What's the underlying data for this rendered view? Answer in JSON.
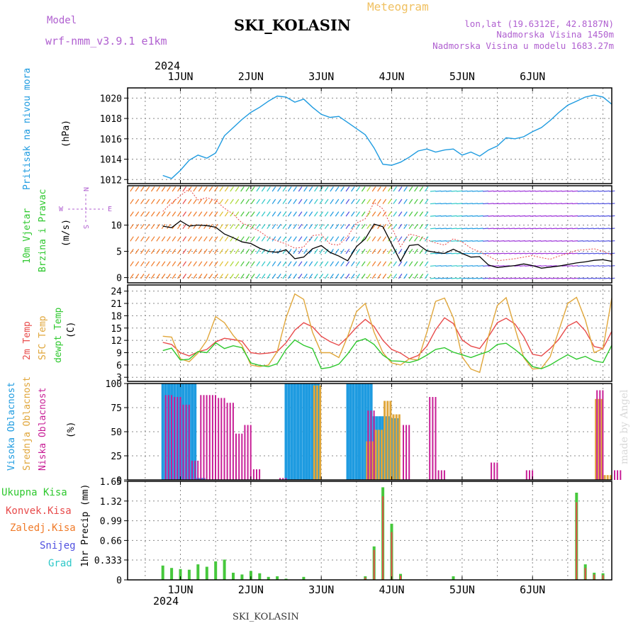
{
  "header": {
    "model_label": "Model",
    "model_name": "wrf-nmm_v3.9.1  e1km",
    "title": "SKI_KOLASIN",
    "product": "Meteogram",
    "lonlat": "lon,lat (19.6312E, 42.8187N)",
    "altitude": "Nadmorska Visina 1450m",
    "model_altitude": "Nadmorska Visina u modelu 1683.27m",
    "year": "2024",
    "footer_station": "SKI_KOLASIN",
    "watermark": "made by Angel"
  },
  "colors": {
    "pressure": "#1e9be0",
    "temp2m": "#e84a4a",
    "sfc": "#e0a63a",
    "dew": "#2ec82e",
    "high_cloud": "#1e9be0",
    "mid_cloud": "#e0a63a",
    "low_cloud": "#c81e96",
    "total_precip": "#46c83c",
    "conv_precip": "#e84a4a",
    "frozen_precip": "#f07a28",
    "snow": "#5050e0",
    "graupel": "#2ec8c8",
    "wind_label": "#2ec82e",
    "axis": "#000000",
    "grid": "#888888"
  },
  "days": [
    "1JUN",
    "2JUN",
    "3JUN",
    "4JUN",
    "5JUN",
    "6JUN"
  ],
  "day_label_year": "2024",
  "panels": {
    "pressure": {
      "label": "Pritisak na nivou mora",
      "unit": "(hPa)",
      "ticks": [
        "1012",
        "1014",
        "1016",
        "1018",
        "1020"
      ]
    },
    "wind": {
      "label_line1": "10m Vjetar",
      "label_line2": "Brzina i Pravac",
      "unit": "(m/s)",
      "ticks": [
        "0",
        "5",
        "10"
      ],
      "compass": {
        "n": "N",
        "w": "W",
        "e": "E",
        "s": "S"
      }
    },
    "temp": {
      "label_2m": "2m Temp",
      "label_sfc": "SFC Temp",
      "label_dew": "dewpt Temp",
      "unit": "(C)",
      "ticks": [
        "3",
        "6",
        "9",
        "12",
        "15",
        "18",
        "21",
        "24"
      ]
    },
    "cloud": {
      "label_high": "Visoka Oblacnost",
      "label_mid": "Srednja Oblacnost",
      "label_low": "Niska Oblacnost",
      "unit": "(%)",
      "ticks": [
        "0",
        "25",
        "50",
        "75",
        "100"
      ]
    },
    "precip": {
      "label_total": "Ukupna Kisa",
      "label_conv": "Konvek.Kisa",
      "label_frozen": "Zaledj.Kisa",
      "label_snow": "Snijeg",
      "label_graupel": "Grad",
      "unit": "1hr Precip (mm)",
      "ticks": [
        "0",
        "0.333",
        "0.66",
        "0.99",
        "1.32",
        "1.65"
      ]
    }
  },
  "chart_data": [
    {
      "type": "line",
      "title": "Pritisak na nivou mora",
      "ylabel": "(hPa)",
      "x_hours_from_start": [
        0,
        3,
        6,
        9,
        12,
        15,
        18,
        21,
        24,
        27,
        30,
        33,
        36,
        39,
        42,
        45,
        48,
        51,
        54,
        57,
        60,
        63,
        66,
        69,
        72,
        75,
        78,
        81,
        84,
        87,
        90,
        93,
        96,
        99,
        102,
        105,
        108,
        111,
        114,
        117,
        120,
        123,
        126,
        129,
        132,
        135,
        138,
        141,
        144,
        147,
        150,
        153
      ],
      "series": [
        {
          "values": [
            1012.4,
            1012.1,
            1012.9,
            1013.9,
            1014.4,
            1014.1,
            1014.6,
            1016.3,
            1017.1,
            1017.9,
            1018.6,
            1019.1,
            1019.7,
            1020.2,
            1020.1,
            1019.6,
            1019.9,
            1019.1,
            1018.4,
            1018.1,
            1018.2,
            1017.6,
            1017.0,
            1016.4,
            1015.1,
            1013.5,
            1013.4,
            1013.7,
            1014.2,
            1014.8,
            1015.0,
            1014.7,
            1014.9,
            1015.0,
            1014.4,
            1014.7,
            1014.3,
            1014.9,
            1015.3,
            1016.1,
            1016.0,
            1016.2,
            1016.7,
            1017.1,
            1017.8,
            1018.6,
            1019.3,
            1019.7,
            1020.1,
            1020.3,
            1020.1,
            1019.4
          ]
        }
      ],
      "ylim": [
        1011.6,
        1021.0
      ]
    },
    {
      "type": "line",
      "title": "10m Vjetar Brzina i Pravac",
      "ylabel": "(m/s)",
      "x_hours_from_start": [
        0,
        3,
        6,
        9,
        12,
        15,
        18,
        21,
        24,
        27,
        30,
        33,
        36,
        39,
        42,
        45,
        48,
        51,
        54,
        57,
        60,
        63,
        66,
        69,
        72,
        75,
        78,
        81,
        84,
        87,
        90,
        93,
        96,
        99,
        102,
        105,
        108,
        111,
        114,
        117,
        120,
        123,
        126,
        129,
        132,
        135,
        138,
        141,
        144,
        147,
        150,
        153
      ],
      "series": [
        {
          "name": "speed",
          "values": [
            9.8,
            9.5,
            10.8,
            9.8,
            10.0,
            9.9,
            9.6,
            8.3,
            7.6,
            6.8,
            6.5,
            5.6,
            5.0,
            4.8,
            5.3,
            3.6,
            3.9,
            5.5,
            6.1,
            4.8,
            4.1,
            3.2,
            5.9,
            7.4,
            10.2,
            9.7,
            6.4,
            3.1,
            6.1,
            6.3,
            5.1,
            4.8,
            4.6,
            5.4,
            4.6,
            3.9,
            4.0,
            2.4,
            1.9,
            2.1,
            2.3,
            2.6,
            2.3,
            1.8,
            2.0,
            2.2,
            2.5,
            2.8,
            3.0,
            3.3,
            3.4,
            3.1
          ]
        },
        {
          "name": "gust",
          "values": [
            12.6,
            14.2,
            15.6,
            16.9,
            14.8,
            15.2,
            14.7,
            13.2,
            12.1,
            10.4,
            9.7,
            8.8,
            7.6,
            7.0,
            6.4,
            5.6,
            5.8,
            8.0,
            8.2,
            6.4,
            6.2,
            7.9,
            10.4,
            11.2,
            14.3,
            13.1,
            9.6,
            5.9,
            8.3,
            7.9,
            7.2,
            6.6,
            6.2,
            7.4,
            6.8,
            5.6,
            4.9,
            4.1,
            3.2,
            3.4,
            3.6,
            3.9,
            4.2,
            3.8,
            3.5,
            4.1,
            4.6,
            5.2,
            5.3,
            5.5,
            5.0,
            4.3
          ]
        }
      ],
      "ylim": [
        -1.0,
        17.5
      ]
    },
    {
      "type": "line",
      "title": "Temperatura",
      "ylabel": "(C)",
      "x_hours_from_start": [
        0,
        3,
        6,
        9,
        12,
        15,
        18,
        21,
        24,
        27,
        30,
        33,
        36,
        39,
        42,
        45,
        48,
        51,
        54,
        57,
        60,
        63,
        66,
        69,
        72,
        75,
        78,
        81,
        84,
        87,
        90,
        93,
        96,
        99,
        102,
        105,
        108,
        111,
        114,
        117,
        120,
        123,
        126,
        129,
        132,
        135,
        138,
        141,
        144,
        147,
        150,
        153
      ],
      "series": [
        {
          "name": "2m Temp",
          "values": [
            11.5,
            11.0,
            9.0,
            8.2,
            9.2,
            9.8,
            11.6,
            12.5,
            12.2,
            11.8,
            9.0,
            8.7,
            8.9,
            9.3,
            11.4,
            14.5,
            16.3,
            15.3,
            13.0,
            11.7,
            10.8,
            12.8,
            15.2,
            17.1,
            15.4,
            12.0,
            9.8,
            8.9,
            7.5,
            8.3,
            10.6,
            14.6,
            17.5,
            16.1,
            12.1,
            10.6,
            10.0,
            12.9,
            16.3,
            17.4,
            16.0,
            12.9,
            8.6,
            8.2,
            10.0,
            12.3,
            15.5,
            16.6,
            14.3,
            10.5,
            10.0,
            14.2
          ]
        },
        {
          "name": "SFC Temp",
          "values": [
            13.0,
            12.8,
            7.5,
            6.8,
            8.9,
            12.0,
            17.8,
            16.3,
            13.2,
            10.8,
            6.0,
            5.6,
            6.0,
            9.3,
            17.5,
            23.3,
            22.0,
            14.0,
            9.0,
            9.0,
            7.8,
            13.0,
            19.0,
            21.0,
            14.0,
            9.0,
            6.5,
            6.0,
            7.5,
            7.2,
            14.0,
            21.5,
            22.3,
            17.5,
            8.0,
            5.0,
            4.2,
            13.0,
            20.5,
            22.4,
            15.0,
            7.8,
            5.0,
            5.2,
            8.0,
            14.5,
            21.0,
            22.5,
            17.0,
            9.0,
            10.0,
            22.3
          ]
        },
        {
          "name": "dewpt Temp",
          "values": [
            9.5,
            10.1,
            7.2,
            7.4,
            9.3,
            9.0,
            11.4,
            10.0,
            10.7,
            10.2,
            6.5,
            5.9,
            5.6,
            6.3,
            9.8,
            12.1,
            10.8,
            10.0,
            5.1,
            5.4,
            6.2,
            8.7,
            11.7,
            12.4,
            11.0,
            8.4,
            7.0,
            6.9,
            6.6,
            7.2,
            8.4,
            9.8,
            10.2,
            9.1,
            8.5,
            7.8,
            8.6,
            9.3,
            11.0,
            11.3,
            9.8,
            8.0,
            5.6,
            5.1,
            6.0,
            7.3,
            8.5,
            7.4,
            8.1,
            7.0,
            6.6,
            10.8
          ]
        }
      ],
      "ylim": [
        2.0,
        25.5
      ]
    },
    {
      "type": "bar",
      "title": "Oblacnost",
      "ylabel": "(%)",
      "x_hours_from_start": [
        0,
        3,
        6,
        9,
        12,
        15,
        18,
        21,
        24,
        27,
        30,
        33,
        36,
        39,
        42,
        45,
        48,
        51,
        54,
        57,
        60,
        63,
        66,
        69,
        72,
        75,
        78,
        81,
        84,
        87,
        90,
        93,
        96,
        99,
        102,
        105,
        108,
        111,
        114,
        117,
        120,
        123,
        126,
        129,
        132,
        135,
        138,
        141,
        144,
        147,
        150,
        153
      ],
      "series": [
        {
          "name": "Visoka Oblacnost",
          "values": [
            100,
            100,
            100,
            100,
            2,
            0,
            0,
            0,
            0,
            0,
            0,
            0,
            0,
            0,
            100,
            100,
            100,
            100,
            0,
            0,
            0,
            100,
            100,
            100,
            66,
            66,
            64,
            0,
            0,
            0,
            0,
            0,
            0,
            0,
            0,
            0,
            0,
            0,
            0,
            0,
            0,
            0,
            0,
            0,
            0,
            0,
            0,
            0,
            0,
            0,
            0,
            0
          ]
        },
        {
          "name": "Srednja Oblacnost",
          "values": [
            0,
            0,
            0,
            0,
            0,
            0,
            0,
            0,
            0,
            0,
            0,
            0,
            0,
            0,
            0,
            0,
            0,
            98,
            0,
            0,
            0,
            0,
            0,
            40,
            52,
            82,
            68,
            0,
            0,
            0,
            0,
            0,
            0,
            0,
            0,
            0,
            0,
            0,
            0,
            0,
            0,
            0,
            0,
            0,
            0,
            0,
            0,
            0,
            0,
            84,
            5,
            0
          ]
        },
        {
          "name": "Niska Oblacnost",
          "values": [
            88,
            86,
            78,
            20,
            88,
            88,
            85,
            80,
            48,
            57,
            11,
            0,
            0,
            2,
            0,
            0,
            0,
            0,
            0,
            0,
            0,
            0,
            0,
            72,
            0,
            0,
            0,
            57,
            0,
            0,
            86,
            10,
            0,
            0,
            0,
            0,
            0,
            18,
            0,
            0,
            0,
            10,
            0,
            0,
            0,
            0,
            0,
            0,
            0,
            93,
            0,
            10
          ]
        }
      ],
      "ylim": [
        0,
        100
      ]
    },
    {
      "type": "bar",
      "title": "1hr Precip",
      "ylabel": "(mm)",
      "x_hours_from_start": [
        0,
        3,
        6,
        9,
        12,
        15,
        18,
        21,
        24,
        27,
        30,
        33,
        36,
        39,
        42,
        45,
        48,
        51,
        54,
        57,
        60,
        63,
        66,
        69,
        72,
        75,
        78,
        81,
        84,
        87,
        90,
        93,
        96,
        99,
        102,
        105,
        108,
        111,
        114,
        117,
        120,
        123,
        126,
        129,
        132,
        135,
        138,
        141,
        144,
        147,
        150,
        153
      ],
      "series": [
        {
          "name": "Ukupna Kisa",
          "values": [
            0.24,
            0.2,
            0.18,
            0.17,
            0.26,
            0.22,
            0.31,
            0.34,
            0.12,
            0.09,
            0.15,
            0.11,
            0.05,
            0.06,
            0.02,
            0,
            0.05,
            0,
            0,
            0,
            0,
            0,
            0,
            0.06,
            0.56,
            1.55,
            0.94,
            0.1,
            0,
            0,
            0,
            0,
            0,
            0.06,
            0,
            0,
            0,
            0,
            0,
            0,
            0,
            0,
            0,
            0,
            0,
            0,
            0,
            1.46,
            0.26,
            0.12,
            0.11,
            0
          ]
        },
        {
          "name": "Konvek.Kisa",
          "values": [
            0,
            0,
            0,
            0,
            0,
            0,
            0,
            0,
            0,
            0,
            0,
            0,
            0,
            0,
            0,
            0,
            0,
            0,
            0,
            0,
            0,
            0,
            0,
            0.04,
            0.5,
            1.4,
            0.8,
            0.07,
            0,
            0,
            0,
            0,
            0,
            0,
            0,
            0,
            0,
            0,
            0,
            0,
            0,
            0,
            0,
            0,
            0,
            0,
            0,
            1.3,
            0.2,
            0.09,
            0.08,
            0
          ]
        }
      ],
      "ylim": [
        0,
        1.65
      ]
    }
  ]
}
